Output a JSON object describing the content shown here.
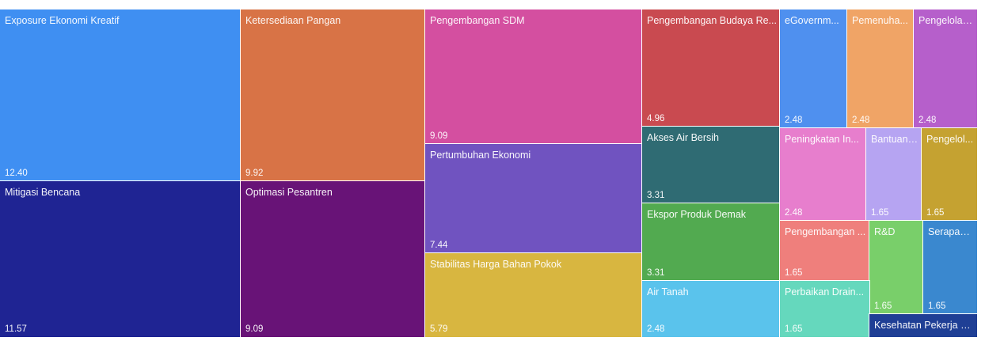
{
  "chart_data": {
    "type": "treemap",
    "items": [
      {
        "label": "Exposure Ekonomi Kreatif",
        "display_label": "Exposure Ekonomi Kreatif",
        "value": 12.4,
        "value_label": "12.40",
        "color": "#3f8ff2"
      },
      {
        "label": "Mitigasi Bencana",
        "display_label": "Mitigasi Bencana",
        "value": 11.57,
        "value_label": "11.57",
        "color": "#1f2493"
      },
      {
        "label": "Ketersediaan Pangan",
        "display_label": "Ketersediaan Pangan",
        "value": 9.92,
        "value_label": "9.92",
        "color": "#d87346"
      },
      {
        "label": "Optimasi Pesantren",
        "display_label": "Optimasi Pesantren",
        "value": 9.09,
        "value_label": "9.09",
        "color": "#681377"
      },
      {
        "label": "Pengembangan SDM",
        "display_label": "Pengembangan SDM",
        "value": 9.09,
        "value_label": "9.09",
        "color": "#d44fa0"
      },
      {
        "label": "Pertumbuhan Ekonomi",
        "display_label": "Pertumbuhan Ekonomi",
        "value": 7.44,
        "value_label": "7.44",
        "color": "#7053c0"
      },
      {
        "label": "Stabilitas Harga Bahan Pokok",
        "display_label": "Stabilitas Harga Bahan Pokok",
        "value": 5.79,
        "value_label": "5.79",
        "color": "#d8b640"
      },
      {
        "label": "Pengembangan Budaya Re...",
        "display_label": "Pengembangan Budaya Re...",
        "value": 4.96,
        "value_label": "4.96",
        "color": "#c94a50"
      },
      {
        "label": "Akses Air Bersih",
        "display_label": "Akses Air Bersih",
        "value": 3.31,
        "value_label": "3.31",
        "color": "#2f6b73"
      },
      {
        "label": "Ekspor Produk Demak",
        "display_label": "Ekspor Produk Demak",
        "value": 3.31,
        "value_label": "3.31",
        "color": "#52aa50"
      },
      {
        "label": "Air Tanah",
        "display_label": "Air Tanah",
        "value": 2.48,
        "value_label": "2.48",
        "color": "#5ac3ec"
      },
      {
        "label": "eGovernm...",
        "display_label": "eGovernm...",
        "value": 2.48,
        "value_label": "2.48",
        "color": "#4f90ef"
      },
      {
        "label": "Pemenuha...",
        "display_label": "Pemenuha...",
        "value": 2.48,
        "value_label": "2.48",
        "color": "#f0a466"
      },
      {
        "label": "Pengelolaa...",
        "display_label": "Pengelolaa...",
        "value": 2.48,
        "value_label": "2.48",
        "color": "#b65fcb"
      },
      {
        "label": "Peningkatan In...",
        "display_label": "Peningkatan In...",
        "value": 2.48,
        "value_label": "2.48",
        "color": "#e77ecd"
      },
      {
        "label": "Bantuan ...",
        "display_label": "Bantuan ...",
        "value": 1.65,
        "value_label": "1.65",
        "color": "#b6a4f2"
      },
      {
        "label": "Pengelol...",
        "display_label": "Pengelol...",
        "value": 1.65,
        "value_label": "1.65",
        "color": "#c5a231"
      },
      {
        "label": "Pengembangan ...",
        "display_label": "Pengembangan ...",
        "value": 1.65,
        "value_label": "1.65",
        "color": "#ef7f7c"
      },
      {
        "label": "R&D",
        "display_label": "R&D",
        "value": 1.65,
        "value_label": "1.65",
        "color": "#79cf6a"
      },
      {
        "label": "Serapan ...",
        "display_label": "Serapan ...",
        "value": 1.65,
        "value_label": "1.65",
        "color": "#3a88cf"
      },
      {
        "label": "Perbaikan Drain...",
        "display_label": "Perbaikan Drain...",
        "value": 1.65,
        "value_label": "1.65",
        "color": "#65d8bd"
      },
      {
        "label": "Kesehatan Pekerja Pa...",
        "display_label": "Kesehatan Pekerja Pa...",
        "value": null,
        "value_label": "",
        "color": "#1f3f95"
      }
    ]
  }
}
